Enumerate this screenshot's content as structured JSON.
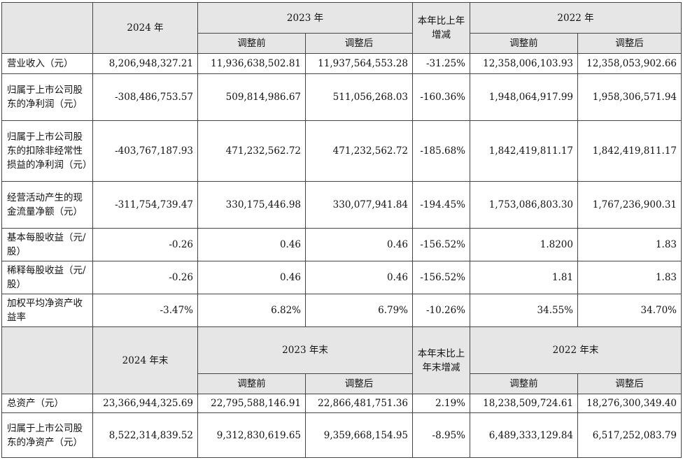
{
  "section1": {
    "header": {
      "y2024": "2024 年",
      "y2023": "2023 年",
      "change": "本年比上年增减",
      "y2022": "2022 年",
      "before": "调整前",
      "after": "调整后"
    },
    "rows": [
      {
        "label": "营业收入（元）",
        "v2024": "8,206,948,327.21",
        "v2023_before": "11,936,638,502.81",
        "v2023_after": "11,937,564,553.28",
        "change": "-31.25%",
        "v2022_before": "12,358,006,103.93",
        "v2022_after": "12,358,053,902.66"
      },
      {
        "label": "归属于上市公司股东的净利润（元）",
        "v2024": "-308,486,753.57",
        "v2023_before": "509,814,986.67",
        "v2023_after": "511,056,268.03",
        "change": "-160.36%",
        "v2022_before": "1,948,064,917.99",
        "v2022_after": "1,958,306,571.94"
      },
      {
        "label": "归属于上市公司股东的扣除非经常性损益的净利润（元）",
        "v2024": "-403,767,187.93",
        "v2023_before": "471,232,562.72",
        "v2023_after": "471,232,562.72",
        "change": "-185.68%",
        "v2022_before": "1,842,419,811.17",
        "v2022_after": "1,842,419,811.17"
      },
      {
        "label": "经营活动产生的现金流量净额（元）",
        "v2024": "-311,754,739.47",
        "v2023_before": "330,175,446.98",
        "v2023_after": "330,077,941.84",
        "change": "-194.45%",
        "v2022_before": "1,753,086,803.30",
        "v2022_after": "1,767,236,900.31"
      },
      {
        "label": "基本每股收益（元/股）",
        "v2024": "-0.26",
        "v2023_before": "0.46",
        "v2023_after": "0.46",
        "change": "-156.52%",
        "v2022_before": "1.8200",
        "v2022_after": "1.83"
      },
      {
        "label": "稀释每股收益（元/股）",
        "v2024": "-0.26",
        "v2023_before": "0.46",
        "v2023_after": "0.46",
        "change": "-156.52%",
        "v2022_before": "1.81",
        "v2022_after": "1.83"
      },
      {
        "label": "加权平均净资产收益率",
        "v2024": "-3.47%",
        "v2023_before": "6.82%",
        "v2023_after": "6.79%",
        "change": "-10.26%",
        "v2022_before": "34.55%",
        "v2022_after": "34.70%"
      }
    ]
  },
  "section2": {
    "header": {
      "y2024": "2024 年末",
      "y2023": "2023 年末",
      "change": "本年末比上年末增减",
      "y2022": "2022 年末",
      "before": "调整前",
      "after": "调整后"
    },
    "rows": [
      {
        "label": "总资产（元）",
        "v2024": "23,366,944,325.69",
        "v2023_before": "22,795,588,146.91",
        "v2023_after": "22,866,481,751.36",
        "change": "2.19%",
        "v2022_before": "18,238,509,724.61",
        "v2022_after": "18,276,300,349.40"
      },
      {
        "label": "归属于上市公司股东的净资产（元）",
        "v2024": "8,522,314,839.52",
        "v2023_before": "9,312,830,619.65",
        "v2023_after": "9,359,668,154.95",
        "change": "-8.95%",
        "v2022_before": "6,489,333,129.84",
        "v2022_after": "6,517,252,083.79"
      }
    ]
  }
}
